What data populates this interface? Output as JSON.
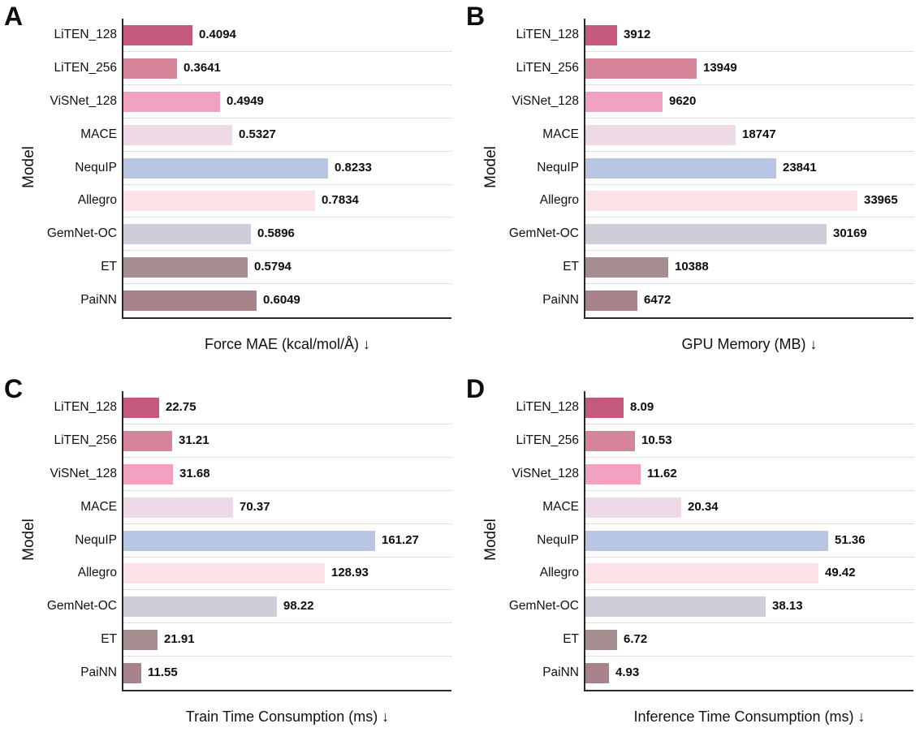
{
  "figure_background": "#ffffff",
  "shared": {
    "categories": [
      "LiTEN_128",
      "LiTEN_256",
      "ViSNet_128",
      "MACE",
      "NequIP",
      "Allegro",
      "GemNet-OC",
      "ET",
      "PaiNN"
    ],
    "bar_colors": [
      "#C4597B",
      "#D5849A",
      "#F0A2C0",
      "#EEDAE6",
      "#B8C6E4",
      "#FCE2E7",
      "#CFCDD8",
      "#A68E90",
      "#A8838C"
    ],
    "axis_color": "#2a2a2a",
    "gridline_color": "#c6c6c6",
    "text_color": "#111111"
  },
  "chart_data": [
    {
      "type": "bar",
      "orientation": "horizontal",
      "panel": "A",
      "xlabel": "Force MAE (kcal/mol/Å) ↓",
      "ylabel": "Model",
      "categories": [
        "LiTEN_128",
        "LiTEN_256",
        "ViSNet_128",
        "MACE",
        "NequIP",
        "Allegro",
        "GemNet-OC",
        "ET",
        "PaiNN"
      ],
      "values": [
        0.4094,
        0.3641,
        0.4949,
        0.5327,
        0.8233,
        0.7834,
        0.5896,
        0.5794,
        0.6049
      ],
      "value_labels": [
        "0.4094",
        "0.3641",
        "0.4949",
        "0.5327",
        "0.8233",
        "0.7834",
        "0.5896",
        "0.5794",
        "0.6049"
      ],
      "xlim": [
        0.2,
        1.2
      ],
      "grid": true,
      "legend": false
    },
    {
      "type": "bar",
      "orientation": "horizontal",
      "panel": "B",
      "xlabel": "GPU Memory (MB) ↓",
      "ylabel": "Model",
      "categories": [
        "LiTEN_128",
        "LiTEN_256",
        "ViSNet_128",
        "MACE",
        "NequIP",
        "Allegro",
        "GemNet-OC",
        "ET",
        "PaiNN"
      ],
      "values": [
        3912,
        13949,
        9620,
        18747,
        23841,
        33965,
        30169,
        10388,
        6472
      ],
      "value_labels": [
        "3912",
        "13949",
        "9620",
        "18747",
        "23841",
        "33965",
        "30169",
        "10388",
        "6472"
      ],
      "xlim": [
        0,
        41000
      ],
      "grid": true,
      "legend": false
    },
    {
      "type": "bar",
      "orientation": "horizontal",
      "panel": "C",
      "xlabel": "Train Time Consumption (ms) ↓",
      "ylabel": "Model",
      "categories": [
        "LiTEN_128",
        "LiTEN_256",
        "ViSNet_128",
        "MACE",
        "NequIP",
        "Allegro",
        "GemNet-OC",
        "ET",
        "PaiNN"
      ],
      "values": [
        22.75,
        31.21,
        31.68,
        70.37,
        161.27,
        128.93,
        98.22,
        21.91,
        11.55
      ],
      "value_labels": [
        "22.75",
        "31.21",
        "31.68",
        "70.37",
        "161.27",
        "128.93",
        "98.22",
        "21.91",
        "11.55"
      ],
      "xlim": [
        0,
        210
      ],
      "grid": true,
      "legend": false
    },
    {
      "type": "bar",
      "orientation": "horizontal",
      "panel": "D",
      "xlabel": "Inference Time Consumption (ms) ↓",
      "ylabel": "Model",
      "categories": [
        "LiTEN_128",
        "LiTEN_256",
        "ViSNet_128",
        "MACE",
        "NequIP",
        "Allegro",
        "GemNet-OC",
        "ET",
        "PaiNN"
      ],
      "values": [
        8.09,
        10.53,
        11.62,
        20.34,
        51.36,
        49.42,
        38.13,
        6.72,
        4.93
      ],
      "value_labels": [
        "8.09",
        "10.53",
        "11.62",
        "20.34",
        "51.36",
        "49.42",
        "38.13",
        "6.72",
        "4.93"
      ],
      "xlim": [
        0,
        69.5
      ],
      "grid": true,
      "legend": false
    }
  ]
}
